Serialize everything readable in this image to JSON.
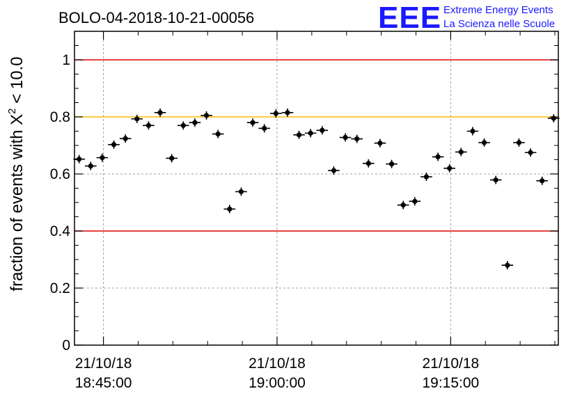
{
  "title": "BOLO-04-2018-10-21-00056",
  "logo": {
    "letters": "EEE",
    "line1": "Extreme Energy Events",
    "line2": "La Scienza nelle Scuole"
  },
  "colors": {
    "limit_red": "#dd0000",
    "target_orange": "#ffbb00",
    "points": "#000000",
    "logo_blue": "#1a1aff"
  },
  "chart_data": {
    "type": "scatter",
    "title": "BOLO-04-2018-10-21-00056",
    "ylabel": "fraction of events with χ² < 10.0",
    "ylabel_main": "fraction of events with X",
    "ylabel_sup": "2",
    "ylabel_tail": " < 10.0",
    "ylim": [
      0,
      1.1
    ],
    "xlim_minutes": [
      -2.5,
      39.3
    ],
    "grid": true,
    "y_ticks": [
      0,
      0.2,
      0.4,
      0.6,
      0.8,
      1
    ],
    "y_tick_labels": [
      "0",
      "0.2",
      "0.4",
      "0.6",
      "0.8",
      "1"
    ],
    "x_ticks": [
      {
        "minute": 0,
        "line1": "21/10/18",
        "line2": "18:45:00"
      },
      {
        "minute": 15,
        "line1": "21/10/18",
        "line2": "19:00:00"
      },
      {
        "minute": 30,
        "line1": "21/10/18",
        "line2": "19:15:00"
      }
    ],
    "reference_lines": [
      {
        "y": 1.0,
        "color": "#dd0000"
      },
      {
        "y": 0.8,
        "color": "#ffbb00"
      },
      {
        "y": 0.4,
        "color": "#dd0000"
      }
    ],
    "bin_width_minutes": 1.0,
    "x_minutes": [
      -2.1,
      -1.1,
      -0.1,
      0.9,
      1.9,
      2.9,
      3.9,
      4.9,
      5.9,
      6.9,
      7.9,
      8.9,
      9.9,
      10.9,
      11.9,
      12.9,
      13.9,
      14.9,
      15.9,
      16.9,
      17.9,
      18.9,
      19.9,
      20.9,
      21.9,
      22.9,
      23.9,
      24.9,
      25.9,
      26.9,
      27.9,
      28.9,
      29.9,
      30.9,
      31.9,
      32.9,
      33.9,
      34.9,
      35.9,
      36.9,
      37.9,
      38.9
    ],
    "y": [
      0.652,
      0.628,
      0.657,
      0.703,
      0.724,
      0.793,
      0.77,
      0.815,
      0.655,
      0.77,
      0.78,
      0.805,
      0.74,
      0.477,
      0.538,
      0.78,
      0.76,
      0.812,
      0.815,
      0.737,
      0.743,
      0.753,
      0.612,
      0.728,
      0.723,
      0.637,
      0.708,
      0.635,
      0.491,
      0.504,
      0.59,
      0.66,
      0.62,
      0.677,
      0.75,
      0.71,
      0.579,
      0.28,
      0.71,
      0.675,
      0.576,
      0.795
    ]
  }
}
